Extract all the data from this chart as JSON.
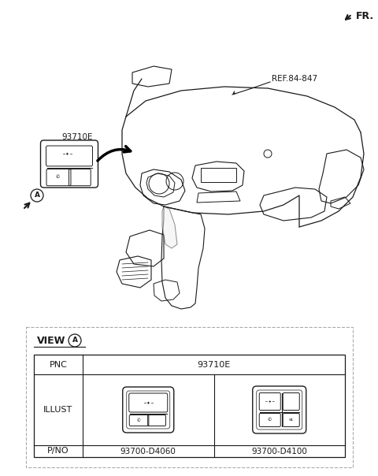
{
  "bg_color": "#ffffff",
  "lc": "#1a1a1a",
  "lc_light": "#555555",
  "fr_label": "FR.",
  "ref_label": "REF.84-847",
  "part_label": "93710E",
  "view_label": "VIEW",
  "pnc_label": "PNC",
  "illust_label": "ILLUST",
  "pno_label": "P/NO",
  "pno1": "93700-D4060",
  "pno2": "93700-D4100",
  "circle_A_label": "A",
  "fig_width": 4.8,
  "fig_height": 6.04,
  "dpi": 100
}
